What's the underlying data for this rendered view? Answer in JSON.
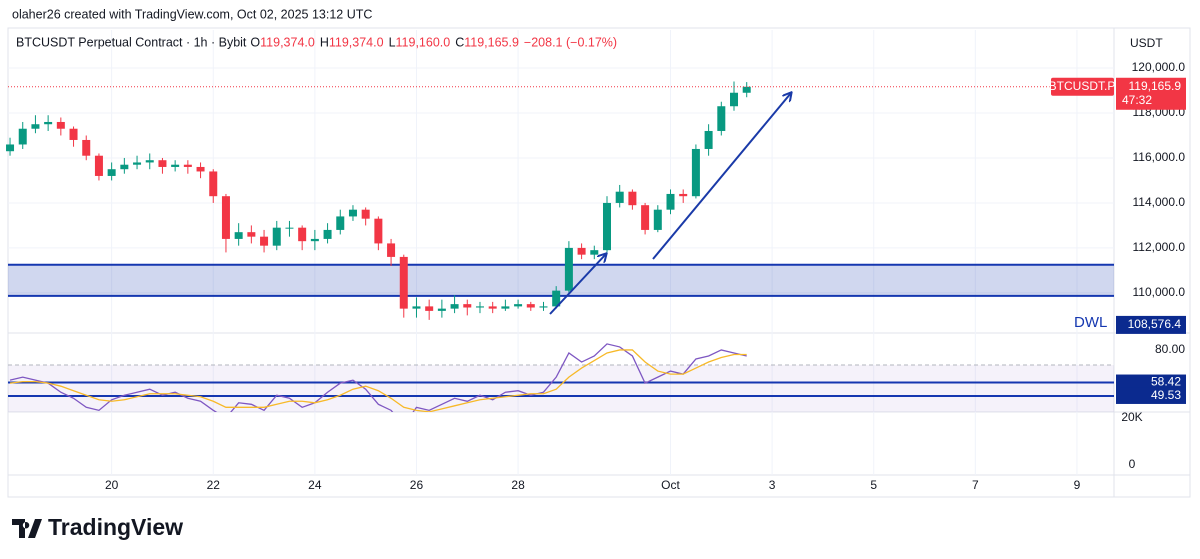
{
  "header": {
    "author_line": "olaher26 created with TradingView.com, Oct 02, 2025 13:12 UTC",
    "symbol": "BTCUSDT Perpetual Contract · 1h · Bybit",
    "ohlc": [
      {
        "key": "O",
        "value": "119,374.0"
      },
      {
        "key": "H",
        "value": "119,374.0"
      },
      {
        "key": "L",
        "value": "119,160.0"
      },
      {
        "key": "C",
        "value": "119,165.9"
      }
    ],
    "change": "−208.1 (−0.17%)",
    "currency": "USDT"
  },
  "chart_data": [
    {
      "type": "candlestick",
      "x": [
        18,
        18.25,
        18.5,
        18.75,
        19,
        19.25,
        19.5,
        19.75,
        20,
        20.25,
        20.5,
        20.75,
        21,
        21.25,
        21.5,
        21.75,
        22,
        22.25,
        22.5,
        22.75,
        23,
        23.25,
        23.5,
        23.75,
        24,
        24.25,
        24.5,
        24.75,
        25,
        25.25,
        25.5,
        25.75,
        26,
        26.25,
        26.5,
        26.75,
        27,
        27.25,
        27.5,
        27.75,
        28,
        28.25,
        28.5,
        28.75,
        29,
        29.25,
        29.5,
        29.75,
        30,
        30.25,
        30.5,
        30.75,
        31,
        31.25,
        31.5,
        31.75,
        32,
        32.25,
        32.5
      ],
      "open": [
        116300,
        116600,
        117300,
        117500,
        117600,
        117300,
        116800,
        116100,
        115200,
        115500,
        115700,
        115800,
        115900,
        115600,
        115700,
        115600,
        115400,
        114300,
        112400,
        112700,
        112500,
        112100,
        112900,
        112900,
        112300,
        112400,
        112800,
        113400,
        113700,
        113300,
        112200,
        111600,
        109300,
        109400,
        109200,
        109300,
        109500,
        109350,
        109400,
        109300,
        109400,
        109500,
        109350,
        109400,
        110100,
        112000,
        111700,
        111900,
        114000,
        114500,
        113900,
        112800,
        113700,
        114400,
        114300,
        116400,
        117200,
        118300,
        118900
      ],
      "high": [
        116900,
        117600,
        117900,
        117900,
        117800,
        117400,
        117000,
        116200,
        115800,
        116000,
        116100,
        116200,
        116000,
        115900,
        115900,
        115800,
        115500,
        114400,
        113100,
        113000,
        112800,
        113200,
        113200,
        113000,
        112800,
        113100,
        113700,
        113900,
        113800,
        113400,
        112400,
        111700,
        109800,
        109700,
        109700,
        109900,
        109700,
        109600,
        109600,
        109700,
        109700,
        109600,
        109600,
        110300,
        112300,
        112200,
        112100,
        114300,
        114800,
        114600,
        114000,
        113900,
        114600,
        114600,
        116600,
        117500,
        118500,
        119400,
        119374
      ],
      "low": [
        116100,
        116400,
        117100,
        117200,
        117000,
        116500,
        115900,
        115000,
        115000,
        115300,
        115500,
        115500,
        115300,
        115400,
        115300,
        115100,
        114000,
        111800,
        112100,
        112200,
        111800,
        111900,
        112500,
        111900,
        111900,
        112200,
        112600,
        113200,
        113000,
        111900,
        111200,
        108900,
        108900,
        108800,
        108900,
        109100,
        109000,
        109100,
        109100,
        109200,
        109300,
        109200,
        109200,
        109300,
        110000,
        111500,
        111500,
        111800,
        113800,
        113700,
        112600,
        112700,
        113500,
        114000,
        114200,
        116100,
        117000,
        118100,
        118700
      ],
      "close": [
        116600,
        117300,
        117500,
        117600,
        117300,
        116800,
        116100,
        115200,
        115500,
        115700,
        115800,
        115900,
        115600,
        115700,
        115600,
        115400,
        114300,
        112400,
        112700,
        112500,
        112100,
        112900,
        112900,
        112300,
        112400,
        112800,
        113400,
        113700,
        113300,
        112200,
        111600,
        109300,
        109400,
        109200,
        109300,
        109500,
        109350,
        109400,
        109300,
        109400,
        109500,
        109350,
        109400,
        110100,
        112000,
        111700,
        111900,
        114000,
        114500,
        113900,
        112800,
        113700,
        114400,
        114300,
        116400,
        117200,
        118300,
        118900,
        119165.9
      ],
      "up_color": "#089981",
      "down_color": "#f23645",
      "xlim": [
        17.96,
        39.69
      ],
      "xticks": [
        20,
        22,
        24,
        26,
        28,
        {
          "value": 31,
          "label": "Oct"
        },
        {
          "value": 33,
          "label": "3"
        },
        {
          "value": 35,
          "label": "5"
        },
        {
          "value": 37,
          "label": "7"
        },
        {
          "value": 39,
          "label": "9"
        }
      ],
      "ylim": [
        108350,
        121690
      ],
      "yticks": [
        {
          "value": 110000,
          "label": "110,000.0"
        },
        {
          "value": 112000,
          "label": "112,000.0"
        },
        {
          "value": 114000,
          "label": "114,000.0"
        },
        {
          "value": 116000,
          "label": "116,000.0"
        },
        {
          "value": 118000,
          "label": "118,000.0"
        },
        {
          "value": 120000,
          "label": "120,000.0"
        }
      ],
      "grid": true,
      "zone": [
        109870,
        111250
      ],
      "zone_color": "#1537b0",
      "last_price": {
        "value": 119165.9,
        "label": "119,165.9",
        "symbol": "BTCUSDT.P",
        "countdown": "47:32"
      },
      "level": {
        "value": 108576.4,
        "label": "108,576.4",
        "name": "DWL"
      }
    },
    {
      "type": "line",
      "ylim": [
        38.9,
        89.9
      ],
      "yticks": [
        {
          "value": 80,
          "label": "80.00"
        }
      ],
      "band_top": 70,
      "hlines": [
        58.42,
        49.53
      ],
      "series": [
        {
          "color": "#7e57c2",
          "values": [
            60,
            62,
            60,
            58,
            52,
            48,
            42,
            40,
            47,
            50,
            52,
            54,
            50,
            52,
            48,
            46,
            40,
            35,
            45,
            44,
            40,
            50,
            48,
            42,
            45,
            52,
            58,
            60,
            54,
            44,
            40,
            30,
            42,
            40,
            44,
            48,
            46,
            50,
            47,
            52,
            53,
            50,
            52,
            62,
            78,
            72,
            76,
            84,
            82,
            76,
            58,
            62,
            66,
            64,
            74,
            76,
            80,
            78,
            76
          ]
        },
        {
          "color": "#f7b928",
          "values": [
            58,
            59,
            59,
            58,
            56,
            53,
            50,
            47,
            46,
            47,
            49,
            51,
            51,
            51,
            50,
            49,
            46,
            42,
            42,
            42,
            42,
            44,
            46,
            46,
            45,
            47,
            50,
            54,
            56,
            53,
            48,
            42,
            40,
            39,
            41,
            43,
            45,
            47,
            48,
            49,
            50,
            51,
            51,
            54,
            62,
            68,
            73,
            78,
            80,
            80,
            72,
            66,
            64,
            64,
            68,
            72,
            75,
            77,
            77
          ]
        }
      ]
    },
    {
      "type": "bar",
      "ylim": [
        0,
        22550
      ],
      "yticks": [
        {
          "value": 20000,
          "label": "20K"
        },
        0
      ]
    }
  ],
  "brand": "TradingView"
}
